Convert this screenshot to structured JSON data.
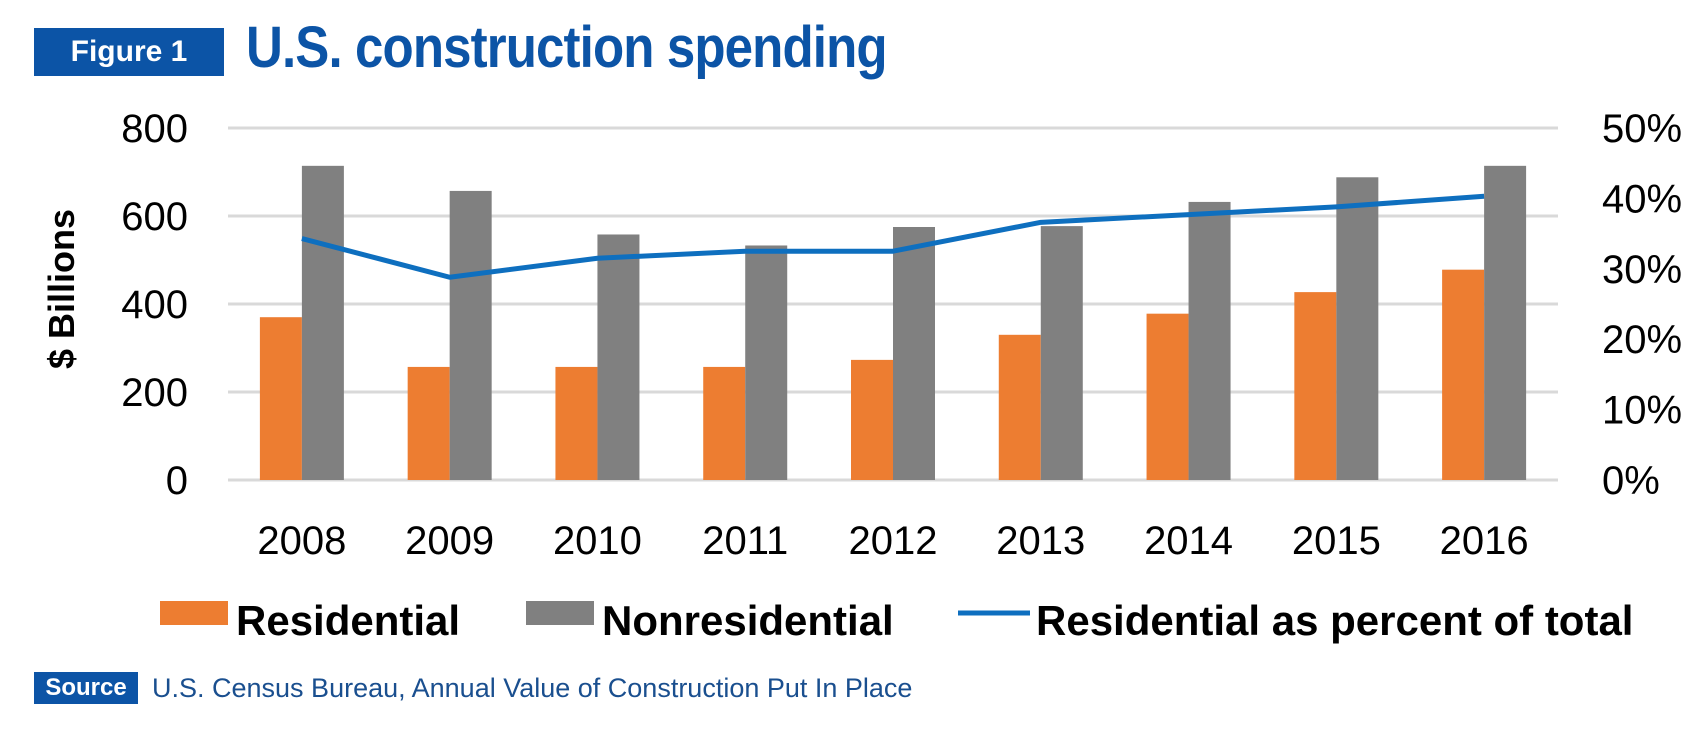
{
  "figure": {
    "badge": "Figure 1",
    "title": "U.S. construction spending"
  },
  "source": {
    "badge": "Source",
    "text": "U.S. Census Bureau, Annual Value of Construction Put In Place"
  },
  "colors": {
    "residential": "#ed7d31",
    "nonresidential": "#808080",
    "line": "#0e6fbf",
    "grid": "#d9d9d9",
    "brand": "#0c54a6"
  },
  "chart_data": {
    "type": "bar",
    "title": "U.S. construction spending",
    "ylabel": "$ Billions",
    "y2label": "",
    "categories": [
      "2008",
      "2009",
      "2010",
      "2011",
      "2012",
      "2013",
      "2014",
      "2015",
      "2016"
    ],
    "ylim": [
      0,
      800
    ],
    "yticks": [
      "0",
      "200",
      "400",
      "600",
      "800"
    ],
    "y2lim": [
      0,
      50
    ],
    "y2ticks": [
      "0%",
      "10%",
      "20%",
      "30%",
      "40%",
      "50%"
    ],
    "grid": true,
    "legend_position": "bottom",
    "series": [
      {
        "name": "Residential",
        "type": "bar",
        "axis": "left",
        "values": [
          370,
          257,
          257,
          257,
          273,
          330,
          378,
          427,
          478
        ]
      },
      {
        "name": "Nonresidential",
        "type": "bar",
        "axis": "left",
        "values": [
          714,
          657,
          558,
          533,
          575,
          577,
          632,
          688,
          714
        ]
      },
      {
        "name": "Residential as percent of total",
        "type": "line",
        "axis": "right",
        "values": [
          34.3,
          28.8,
          31.5,
          32.5,
          32.5,
          36.6,
          37.7,
          38.8,
          40.3
        ]
      }
    ]
  }
}
